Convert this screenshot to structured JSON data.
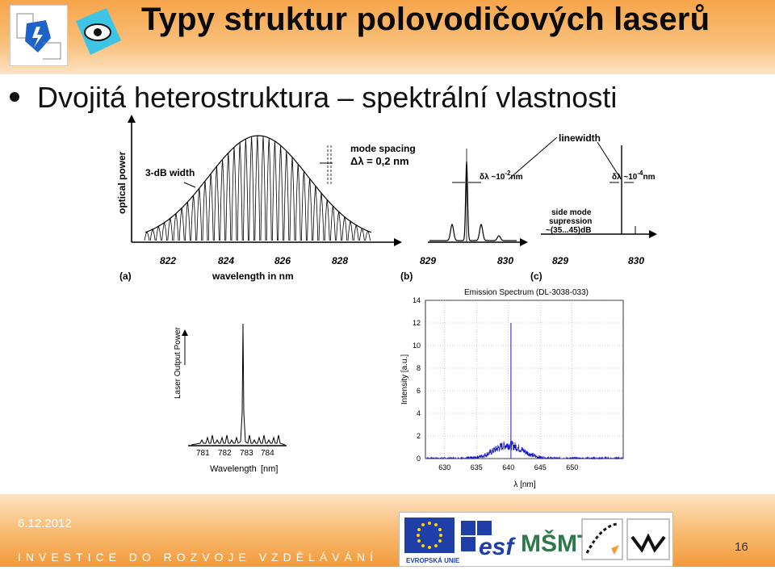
{
  "slide": {
    "title": "Typy struktur polovodičových laserů",
    "bullet": "Dvojitá heterostruktura – spektrální vlastnosti",
    "date": "6.12.2012",
    "footer_text": "INVESTICE DO ROZVOJE VZDĚLÁVÁNÍ",
    "page_number": "16",
    "logo_eu_label": "EVROPSKÁ UNIE",
    "logo_esf": "esf",
    "logo_msmt": "MŠMT"
  },
  "figure_top": {
    "panel_a": {
      "label": "(a)",
      "ylabel": "optical power",
      "xlabel": "wavelength in nm",
      "ticks": [
        "822",
        "824",
        "826",
        "828"
      ],
      "annot_3db": "3-dB width",
      "annot_mode_spacing": "mode spacing",
      "annot_delta": "Δλ = 0,2 nm"
    },
    "panel_b": {
      "label": "(b)",
      "ticks": [
        "829",
        "830"
      ],
      "annot": "δλ ~10",
      "annot_exp": "-2",
      "annot_unit": "nm"
    },
    "panel_c": {
      "label": "(c)",
      "ticks": [
        "829",
        "830"
      ],
      "annot_linewidth": "linewidth",
      "annot": "δλ ~10",
      "annot_exp": "-4",
      "annot_unit": "nm",
      "annot_side1": "side mode",
      "annot_side2": "supression",
      "annot_side3": "~(35...45)dB"
    }
  },
  "figure_bottom_left": {
    "ylabel": "Laser Output Power",
    "xlabel": "Wavelength",
    "xunit": "[nm]",
    "ticks": [
      "781",
      "782",
      "783",
      "784"
    ]
  },
  "chart_data": {
    "type": "line",
    "title": "Emission Spectrum (DL-3038-033)",
    "xlabel": "λ [nm]",
    "ylabel": "Intensity [a.u.]",
    "xlim": [
      627,
      658
    ],
    "ylim": [
      0,
      14
    ],
    "xticks": [
      630,
      635,
      640,
      645,
      650
    ],
    "yticks": [
      0,
      2,
      4,
      6,
      8,
      10,
      12,
      14
    ],
    "grid": true,
    "series_color": "#1a1ac8",
    "peak": {
      "x": 640.4,
      "y": 12.0
    },
    "baseline_hump": {
      "center": 640,
      "height": 1.2,
      "width": 8
    }
  }
}
